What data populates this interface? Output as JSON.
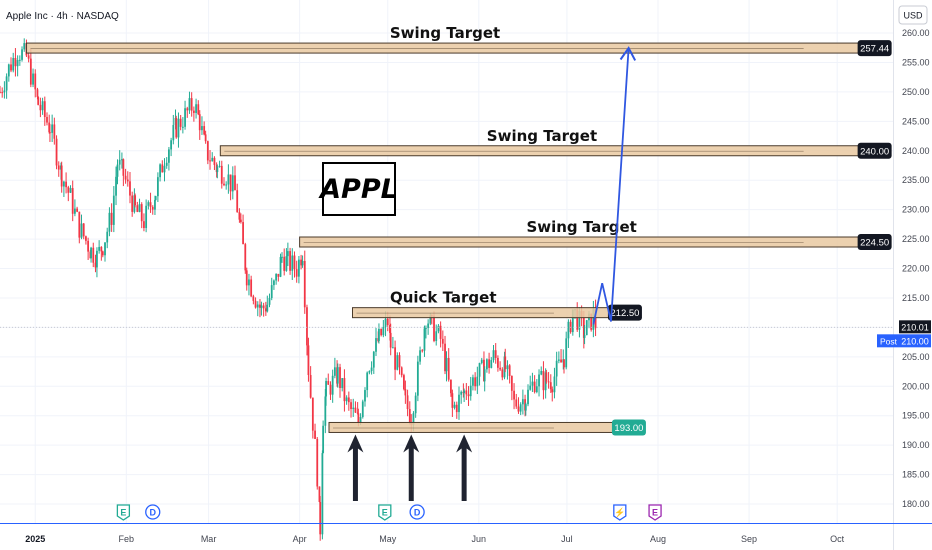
{
  "header": {
    "symbol_line": "Apple Inc · 4h · NASDAQ"
  },
  "price_axis": {
    "currency": "USD",
    "post_label": "Post"
  },
  "annotation": {
    "label": "APPL"
  },
  "chart_data": {
    "type": "candlestick",
    "title": "Apple Inc · 4h · NASDAQ",
    "ylabel": "USD",
    "ylim": [
      175,
      265
    ],
    "y_ticks": [
      180,
      185,
      190,
      195,
      200,
      205,
      210,
      215,
      220,
      225,
      230,
      235,
      240,
      245,
      250,
      255,
      260
    ],
    "x_ticks": [
      "2025",
      "Feb",
      "Mar",
      "Apr",
      "May",
      "Jun",
      "Jul",
      "Aug",
      "Sep",
      "Oct"
    ],
    "x_tick_dates": [
      "2025-01-01",
      "2025-02-01",
      "2025-03-01",
      "2025-04-01",
      "2025-05-01",
      "2025-06-01",
      "2025-07-01",
      "2025-08-01",
      "2025-09-01",
      "2025-10-01"
    ],
    "xlim": [
      "2024-12-20",
      "2025-10-20"
    ],
    "close_path": [
      [
        "2024-12-20",
        250
      ],
      [
        "2024-12-23",
        254
      ],
      [
        "2024-12-26",
        257
      ],
      [
        "2024-12-29",
        256
      ],
      [
        "2025-01-02",
        248
      ],
      [
        "2025-01-06",
        244
      ],
      [
        "2025-01-10",
        236
      ],
      [
        "2025-01-13",
        232
      ],
      [
        "2025-01-16",
        227
      ],
      [
        "2025-01-20",
        223
      ],
      [
        "2025-01-22",
        222
      ],
      [
        "2025-01-24",
        224
      ],
      [
        "2025-01-27",
        229
      ],
      [
        "2025-01-29",
        238
      ],
      [
        "2025-01-31",
        236
      ],
      [
        "2025-02-04",
        230
      ],
      [
        "2025-02-07",
        228
      ],
      [
        "2025-02-11",
        233
      ],
      [
        "2025-02-14",
        239
      ],
      [
        "2025-02-18",
        244
      ],
      [
        "2025-02-21",
        246
      ],
      [
        "2025-02-24",
        248
      ],
      [
        "2025-02-26",
        245
      ],
      [
        "2025-02-28",
        240
      ],
      [
        "2025-03-04",
        237
      ],
      [
        "2025-03-07",
        236
      ],
      [
        "2025-03-10",
        233
      ],
      [
        "2025-03-12",
        226
      ],
      [
        "2025-03-14",
        219
      ],
      [
        "2025-03-17",
        215
      ],
      [
        "2025-03-19",
        213
      ],
      [
        "2025-03-21",
        214
      ],
      [
        "2025-03-24",
        218
      ],
      [
        "2025-03-26",
        222
      ],
      [
        "2025-03-28",
        221
      ],
      [
        "2025-03-31",
        220
      ],
      [
        "2025-04-02",
        223
      ],
      [
        "2025-04-04",
        203
      ],
      [
        "2025-04-07",
        185
      ],
      [
        "2025-04-08",
        176
      ],
      [
        "2025-04-09",
        195
      ],
      [
        "2025-04-10",
        199
      ],
      [
        "2025-04-14",
        202
      ],
      [
        "2025-04-17",
        197
      ],
      [
        "2025-04-21",
        194
      ],
      [
        "2025-04-24",
        203
      ],
      [
        "2025-04-28",
        208
      ],
      [
        "2025-05-01",
        211
      ],
      [
        "2025-05-02",
        207
      ],
      [
        "2025-05-05",
        202
      ],
      [
        "2025-05-07",
        197
      ],
      [
        "2025-05-09",
        195
      ],
      [
        "2025-05-12",
        205
      ],
      [
        "2025-05-14",
        212
      ],
      [
        "2025-05-16",
        210
      ],
      [
        "2025-05-19",
        208
      ],
      [
        "2025-05-21",
        203
      ],
      [
        "2025-05-23",
        196
      ],
      [
        "2025-05-27",
        199
      ],
      [
        "2025-05-30",
        201
      ],
      [
        "2025-06-03",
        203
      ],
      [
        "2025-06-06",
        205
      ],
      [
        "2025-06-10",
        203
      ],
      [
        "2025-06-13",
        197
      ],
      [
        "2025-06-17",
        198
      ],
      [
        "2025-06-20",
        201
      ],
      [
        "2025-06-24",
        201
      ],
      [
        "2025-06-26",
        201
      ],
      [
        "2025-06-30",
        205
      ],
      [
        "2025-07-03",
        213
      ],
      [
        "2025-07-07",
        209
      ],
      [
        "2025-07-10",
        212
      ],
      [
        "2025-07-11",
        210
      ]
    ],
    "current_price": 210.01,
    "post_price": 210.0,
    "levels": [
      {
        "label": "Swing Target",
        "price": 257.44,
        "price_label": "257.44",
        "start": "2024-12-29",
        "end": "2025-10-10"
      },
      {
        "label": "Swing Target",
        "price": 240.0,
        "price_label": "240.00",
        "start": "2025-03-05",
        "end": "2025-10-10"
      },
      {
        "label": "Swing Target",
        "price": 224.5,
        "price_label": "224.50",
        "start": "2025-04-01",
        "end": "2025-10-10"
      },
      {
        "label": "Quick Target",
        "price": 212.5,
        "price_label": "212.50",
        "start": "2025-04-19",
        "end": "2025-07-17"
      },
      {
        "label": "",
        "price": 193.0,
        "price_label": "193.00",
        "start": "2025-04-11",
        "end": "2025-07-17"
      }
    ],
    "support_arrows_at": [
      "2025-04-20",
      "2025-05-09",
      "2025-05-27"
    ],
    "projection_path": [
      [
        "2025-07-10",
        210.5
      ],
      [
        "2025-07-13",
        217.5
      ],
      [
        "2025-07-16",
        211
      ],
      [
        "2025-07-22",
        257.44
      ]
    ],
    "events": [
      {
        "date": "2025-01-31",
        "label": "E"
      },
      {
        "date": "2025-02-10",
        "label": "D"
      },
      {
        "date": "2025-04-30",
        "label": "E"
      },
      {
        "date": "2025-05-11",
        "label": "D"
      },
      {
        "date": "2025-07-19",
        "label": "⚡"
      },
      {
        "date": "2025-07-31",
        "label": "E"
      }
    ],
    "colors": {
      "up": "#22ab94",
      "down": "#f23645",
      "projection": "#3057e1",
      "zone_fill": "#e9c9a1",
      "zone_border": "#4a3a2a",
      "price_axis_line": "#2962ff",
      "support_label": "#22ab94"
    }
  }
}
